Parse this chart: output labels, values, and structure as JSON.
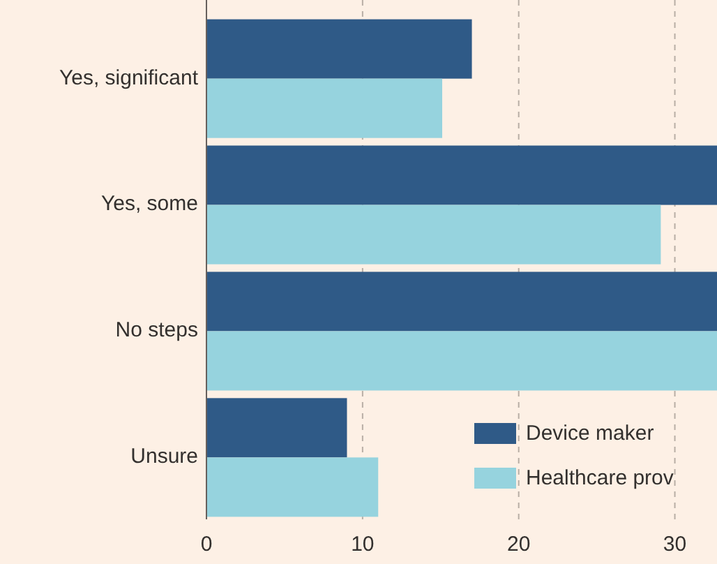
{
  "chart_data": {
    "type": "bar",
    "orientation": "horizontal",
    "categories": [
      "Yes, significant",
      "Yes, some",
      "No steps",
      "Unsure"
    ],
    "series": [
      {
        "name": "Device maker",
        "color": "#2f5a87",
        "values": [
          17.0,
          32.7,
          32.7,
          9.0
        ]
      },
      {
        "name": "Healthcare prov",
        "color": "#96d3de",
        "values": [
          15.1,
          29.1,
          32.7,
          11.0
        ]
      }
    ],
    "xlim": [
      0,
      32.7
    ],
    "xticks": [
      0,
      10,
      20,
      30
    ],
    "grid": "x",
    "legend": "bottom right"
  }
}
